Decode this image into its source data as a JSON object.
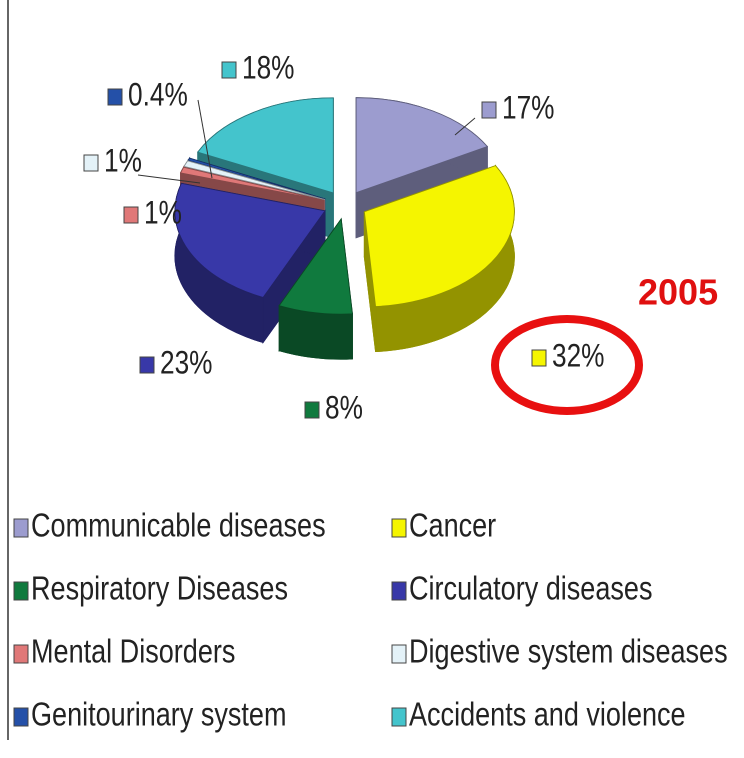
{
  "chart_data": {
    "type": "pie",
    "annotation": "2005",
    "categories": [
      "Communicable diseases",
      "Cancer",
      "Respiratory Diseases",
      "Circulatory diseases",
      "Mental Disorders",
      "Digestive system diseases",
      "Genitourinary system",
      "Accidents and violence"
    ],
    "values": [
      17,
      32,
      8,
      23,
      1,
      1,
      0.4,
      18
    ],
    "value_labels": [
      "17%",
      "32%",
      "8%",
      "23%",
      "1%",
      "1%",
      "0.4%",
      "18%"
    ],
    "colors": [
      "#9c9ccf",
      "#f5f500",
      "#107a3e",
      "#3838a8",
      "#e07878",
      "#e4f2f8",
      "#2450a8",
      "#44c4cc"
    ],
    "legend": "bottom"
  }
}
